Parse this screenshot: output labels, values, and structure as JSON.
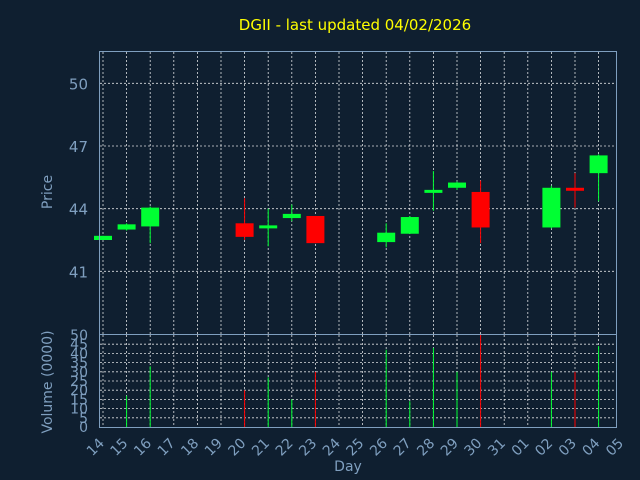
{
  "colors": {
    "background": "#0f1f30",
    "up": "#00ff33",
    "down": "#ff0000",
    "title": "#ffff00",
    "axis": "#7f9fbf",
    "grid": "#ffffff"
  },
  "chart_data": {
    "type": "candlestick",
    "title": "DGII - last updated 04/02/2026",
    "price_label": "Price",
    "volume_label": "Volume (0000)",
    "xlabel": "Day",
    "price_ylim": [
      38,
      51.5
    ],
    "price_ticks": [
      "50",
      "47",
      "44",
      "41"
    ],
    "price_tick_values": [
      50,
      47,
      44,
      41
    ],
    "volume_ylim": [
      0,
      50
    ],
    "volume_ticks": [
      "50",
      "45",
      "40",
      "35",
      "30",
      "25",
      "20",
      "15",
      "10",
      "5",
      "0"
    ],
    "volume_tick_values": [
      50,
      45,
      40,
      35,
      30,
      25,
      20,
      15,
      10,
      5,
      0
    ],
    "x_labels": [
      "14",
      "15",
      "16",
      "17",
      "18",
      "19",
      "20",
      "21",
      "22",
      "23",
      "24",
      "25",
      "26",
      "27",
      "28",
      "29",
      "30",
      "31",
      "01",
      "02",
      "03",
      "04",
      "05"
    ],
    "candles": [
      {
        "i": 0,
        "open": 42.5,
        "close": 42.7,
        "high": 42.7,
        "low": 42.5,
        "volume": 0,
        "dir": "up"
      },
      {
        "i": 1,
        "open": 43.0,
        "close": 43.25,
        "high": 43.3,
        "low": 42.95,
        "volume": 17,
        "dir": "up"
      },
      {
        "i": 2,
        "open": 43.15,
        "close": 44.05,
        "high": 44.1,
        "low": 42.35,
        "volume": 33,
        "dir": "up"
      },
      {
        "i": 6,
        "open": 43.3,
        "close": 42.65,
        "high": 44.5,
        "low": 42.5,
        "volume": 20,
        "dir": "down"
      },
      {
        "i": 7,
        "open": 43.1,
        "close": 43.2,
        "high": 44.0,
        "low": 42.2,
        "volume": 27,
        "dir": "up"
      },
      {
        "i": 8,
        "open": 43.55,
        "close": 43.75,
        "high": 44.2,
        "low": 43.4,
        "volume": 15,
        "dir": "up"
      },
      {
        "i": 9,
        "open": 43.65,
        "close": 42.35,
        "high": 43.65,
        "low": 42.35,
        "volume": 30,
        "dir": "down"
      },
      {
        "i": 12,
        "open": 42.4,
        "close": 42.85,
        "high": 43.3,
        "low": 42.15,
        "volume": 42,
        "dir": "up"
      },
      {
        "i": 13,
        "open": 42.8,
        "close": 43.6,
        "high": 43.65,
        "low": 42.8,
        "volume": 14,
        "dir": "up"
      },
      {
        "i": 14,
        "open": 44.8,
        "close": 44.9,
        "high": 45.8,
        "low": 43.9,
        "volume": 43,
        "dir": "up"
      },
      {
        "i": 15,
        "open": 45.0,
        "close": 45.25,
        "high": 45.3,
        "low": 44.9,
        "volume": 30,
        "dir": "up"
      },
      {
        "i": 16,
        "open": 44.8,
        "close": 43.1,
        "high": 45.35,
        "low": 42.35,
        "volume": 50,
        "dir": "down"
      },
      {
        "i": 19,
        "open": 43.1,
        "close": 45.0,
        "high": 45.1,
        "low": 43.05,
        "volume": 30,
        "dir": "up"
      },
      {
        "i": 20,
        "open": 45.0,
        "close": 44.9,
        "high": 45.7,
        "low": 44.05,
        "volume": 30,
        "dir": "down"
      },
      {
        "i": 21,
        "open": 45.7,
        "close": 46.55,
        "high": 46.6,
        "low": 44.35,
        "volume": 44,
        "dir": "up"
      }
    ]
  }
}
